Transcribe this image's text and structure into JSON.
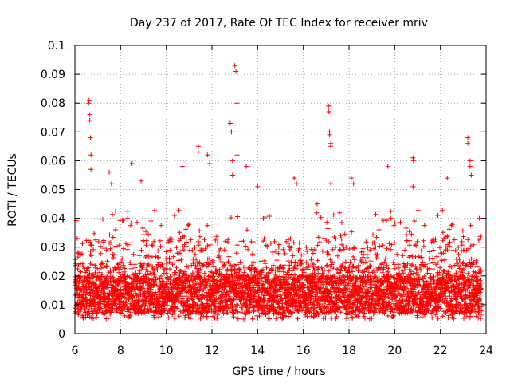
{
  "chart_data": {
    "type": "scatter",
    "title": "Day 237 of 2017, Rate Of TEC Index for receiver mriv",
    "xlabel": "GPS time / hours",
    "ylabel": "ROTI / TECUs",
    "xlim": [
      6,
      24
    ],
    "ylim": [
      0,
      0.1
    ],
    "xticks": [
      6,
      8,
      10,
      12,
      14,
      16,
      18,
      20,
      22,
      24
    ],
    "xtick_labels": [
      "6",
      "8",
      "10",
      "12",
      "14",
      "16",
      "18",
      "20",
      "22",
      "24"
    ],
    "yticks": [
      0,
      0.01,
      0.02,
      0.03,
      0.04,
      0.05,
      0.06,
      0.07,
      0.08,
      0.09,
      0.1
    ],
    "ytick_labels": [
      "0",
      "0.01",
      "0.02",
      "0.03",
      "0.04",
      "0.05",
      "0.06",
      "0.07",
      "0.08",
      "0.09",
      "0.1"
    ],
    "grid": true,
    "marker": "plus",
    "color": "#ff0000",
    "series": [
      {
        "name": "ROTI",
        "x_range": [
          6.0,
          23.8
        ],
        "baseline_range": [
          0.005,
          0.025
        ],
        "notable_points": [
          {
            "x": 6.1,
            "y": 0.033
          },
          {
            "x": 6.6,
            "y": 0.08
          },
          {
            "x": 6.62,
            "y": 0.081
          },
          {
            "x": 6.65,
            "y": 0.076
          },
          {
            "x": 6.65,
            "y": 0.074
          },
          {
            "x": 6.68,
            "y": 0.068
          },
          {
            "x": 6.7,
            "y": 0.062
          },
          {
            "x": 6.7,
            "y": 0.057
          },
          {
            "x": 7.5,
            "y": 0.056
          },
          {
            "x": 7.6,
            "y": 0.052
          },
          {
            "x": 8.5,
            "y": 0.059
          },
          {
            "x": 8.9,
            "y": 0.053
          },
          {
            "x": 10.7,
            "y": 0.058
          },
          {
            "x": 11.4,
            "y": 0.065
          },
          {
            "x": 11.4,
            "y": 0.063
          },
          {
            "x": 11.8,
            "y": 0.062
          },
          {
            "x": 11.9,
            "y": 0.059
          },
          {
            "x": 12.8,
            "y": 0.073
          },
          {
            "x": 12.85,
            "y": 0.07
          },
          {
            "x": 12.9,
            "y": 0.06
          },
          {
            "x": 12.9,
            "y": 0.055
          },
          {
            "x": 13.0,
            "y": 0.093
          },
          {
            "x": 13.05,
            "y": 0.091
          },
          {
            "x": 13.1,
            "y": 0.08
          },
          {
            "x": 13.1,
            "y": 0.062
          },
          {
            "x": 13.5,
            "y": 0.058
          },
          {
            "x": 14.0,
            "y": 0.051
          },
          {
            "x": 15.6,
            "y": 0.054
          },
          {
            "x": 15.7,
            "y": 0.052
          },
          {
            "x": 16.6,
            "y": 0.045
          },
          {
            "x": 17.1,
            "y": 0.079
          },
          {
            "x": 17.12,
            "y": 0.077
          },
          {
            "x": 17.15,
            "y": 0.07
          },
          {
            "x": 17.15,
            "y": 0.069
          },
          {
            "x": 17.2,
            "y": 0.066
          },
          {
            "x": 17.2,
            "y": 0.065
          },
          {
            "x": 17.2,
            "y": 0.052
          },
          {
            "x": 18.1,
            "y": 0.054
          },
          {
            "x": 18.2,
            "y": 0.052
          },
          {
            "x": 19.7,
            "y": 0.058
          },
          {
            "x": 20.8,
            "y": 0.061
          },
          {
            "x": 20.82,
            "y": 0.06
          },
          {
            "x": 20.8,
            "y": 0.051
          },
          {
            "x": 22.3,
            "y": 0.054
          },
          {
            "x": 23.2,
            "y": 0.068
          },
          {
            "x": 23.2,
            "y": 0.066
          },
          {
            "x": 23.25,
            "y": 0.063
          },
          {
            "x": 23.3,
            "y": 0.06
          },
          {
            "x": 23.3,
            "y": 0.058
          },
          {
            "x": 23.35,
            "y": 0.055
          },
          {
            "x": 23.7,
            "y": 0.04
          }
        ]
      }
    ]
  }
}
